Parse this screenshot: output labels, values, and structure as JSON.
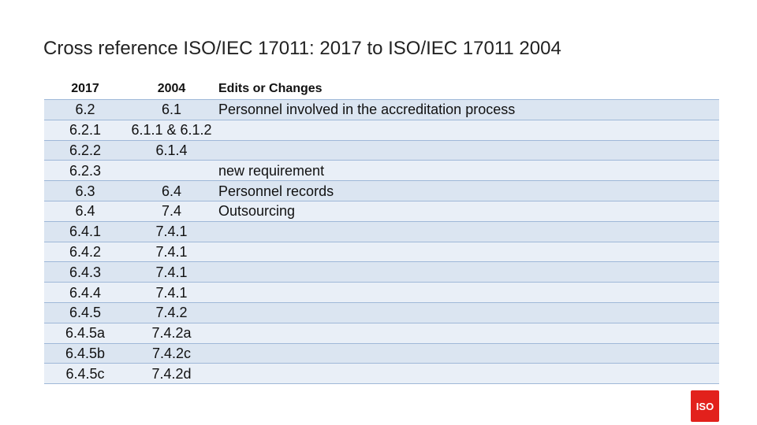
{
  "header": {
    "title": "Cross reference ISO/IEC 17011: 2017 to ISO/IEC 17011 2004"
  },
  "table": {
    "columns": [
      "2017",
      "2004",
      "Edits or Changes"
    ],
    "rows": [
      [
        "6.2",
        "6.1",
        "Personnel involved in the accreditation process"
      ],
      [
        "6.2.1",
        "6.1.1 & 6.1.2",
        null
      ],
      [
        "6.2.2",
        "6.1.4",
        null
      ],
      [
        "6.2.3",
        null,
        "new requirement"
      ],
      [
        "6.3",
        "6.4",
        "Personnel records"
      ],
      [
        "6.4",
        "7.4",
        "Outsourcing"
      ],
      [
        "6.4.1",
        "7.4.1",
        null
      ],
      [
        "6.4.2",
        "7.4.1",
        null
      ],
      [
        "6.4.3",
        "7.4.1",
        null
      ],
      [
        "6.4.4",
        "7.4.1",
        null
      ],
      [
        "6.4.5",
        "7.4.2",
        null
      ],
      [
        "6.4.5a",
        "7.4.2a",
        null
      ],
      [
        "6.4.5b",
        "7.4.2c",
        null
      ],
      [
        "6.4.5c",
        "7.4.2d",
        null
      ]
    ]
  },
  "logo": {
    "text": "ISO"
  }
}
